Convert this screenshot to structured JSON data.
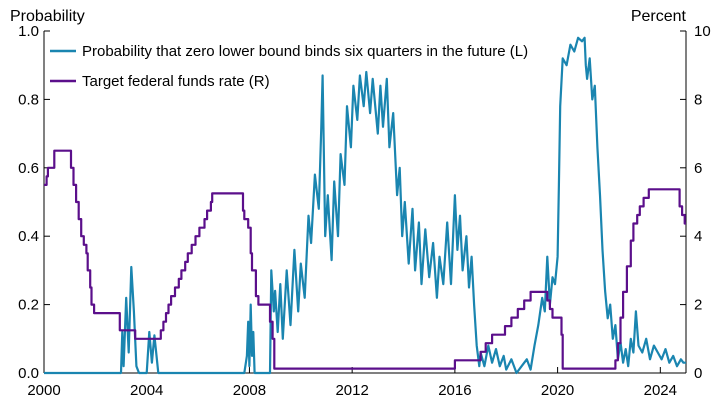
{
  "chart_data": {
    "type": "line",
    "left_axis_title": "Probability",
    "right_axis_title": "Percent",
    "xlim": [
      2000,
      2025
    ],
    "ylim_left": [
      0,
      1
    ],
    "ylim_right": [
      0,
      10
    ],
    "x_ticks": [
      2000,
      2004,
      2008,
      2012,
      2016,
      2020,
      2024
    ],
    "x_tick_labels": [
      "2000",
      "2004",
      "2008",
      "2012",
      "2016",
      "2020",
      "2024"
    ],
    "y_left_ticks": [
      0,
      0.2,
      0.4,
      0.6,
      0.8,
      1.0
    ],
    "y_left_tick_labels": [
      "0.0",
      "0.2",
      "0.4",
      "0.6",
      "0.8",
      "1.0"
    ],
    "y_right_ticks": [
      0,
      2,
      4,
      6,
      8,
      10
    ],
    "y_right_tick_labels": [
      "0",
      "2",
      "4",
      "6",
      "8",
      "10"
    ],
    "grid": false,
    "legend_position": "top-left",
    "series": [
      {
        "name": "Probability that zero lower bound binds six quarters in the future (L)",
        "axis": "left",
        "color": "#1a85b0",
        "points": [
          [
            2000.0,
            0.0
          ],
          [
            2003.0,
            0.0
          ],
          [
            2003.05,
            0.12
          ],
          [
            2003.1,
            0.02
          ],
          [
            2003.2,
            0.22
          ],
          [
            2003.3,
            0.06
          ],
          [
            2003.4,
            0.31
          ],
          [
            2003.5,
            0.18
          ],
          [
            2003.6,
            0.02
          ],
          [
            2003.7,
            0.0
          ],
          [
            2004.0,
            0.0
          ],
          [
            2004.1,
            0.12
          ],
          [
            2004.2,
            0.03
          ],
          [
            2004.3,
            0.11
          ],
          [
            2004.45,
            0.0
          ],
          [
            2007.8,
            0.0
          ],
          [
            2007.9,
            0.05
          ],
          [
            2007.95,
            0.15
          ],
          [
            2008.0,
            0.02
          ],
          [
            2008.05,
            0.2
          ],
          [
            2008.1,
            0.05
          ],
          [
            2008.15,
            0.12
          ],
          [
            2008.2,
            0.0
          ],
          [
            2008.8,
            0.0
          ],
          [
            2008.85,
            0.3
          ],
          [
            2008.95,
            0.18
          ],
          [
            2009.0,
            0.24
          ],
          [
            2009.1,
            0.12
          ],
          [
            2009.2,
            0.26
          ],
          [
            2009.3,
            0.1
          ],
          [
            2009.45,
            0.3
          ],
          [
            2009.6,
            0.14
          ],
          [
            2009.75,
            0.36
          ],
          [
            2009.9,
            0.18
          ],
          [
            2010.0,
            0.32
          ],
          [
            2010.15,
            0.22
          ],
          [
            2010.3,
            0.46
          ],
          [
            2010.4,
            0.38
          ],
          [
            2010.55,
            0.58
          ],
          [
            2010.7,
            0.48
          ],
          [
            2010.8,
            0.72
          ],
          [
            2010.85,
            0.87
          ],
          [
            2010.95,
            0.4
          ],
          [
            2011.05,
            0.52
          ],
          [
            2011.2,
            0.33
          ],
          [
            2011.3,
            0.56
          ],
          [
            2011.45,
            0.4
          ],
          [
            2011.55,
            0.64
          ],
          [
            2011.7,
            0.55
          ],
          [
            2011.8,
            0.78
          ],
          [
            2011.95,
            0.66
          ],
          [
            2012.05,
            0.84
          ],
          [
            2012.2,
            0.74
          ],
          [
            2012.3,
            0.87
          ],
          [
            2012.45,
            0.78
          ],
          [
            2012.55,
            0.88
          ],
          [
            2012.7,
            0.76
          ],
          [
            2012.8,
            0.86
          ],
          [
            2013.0,
            0.7
          ],
          [
            2013.1,
            0.84
          ],
          [
            2013.2,
            0.72
          ],
          [
            2013.35,
            0.86
          ],
          [
            2013.45,
            0.66
          ],
          [
            2013.6,
            0.76
          ],
          [
            2013.75,
            0.52
          ],
          [
            2013.85,
            0.6
          ],
          [
            2013.95,
            0.4
          ],
          [
            2014.05,
            0.5
          ],
          [
            2014.2,
            0.32
          ],
          [
            2014.35,
            0.48
          ],
          [
            2014.45,
            0.3
          ],
          [
            2014.6,
            0.44
          ],
          [
            2014.7,
            0.26
          ],
          [
            2014.85,
            0.42
          ],
          [
            2015.0,
            0.28
          ],
          [
            2015.15,
            0.38
          ],
          [
            2015.3,
            0.22
          ],
          [
            2015.4,
            0.34
          ],
          [
            2015.55,
            0.26
          ],
          [
            2015.7,
            0.44
          ],
          [
            2015.85,
            0.26
          ],
          [
            2016.0,
            0.52
          ],
          [
            2016.1,
            0.36
          ],
          [
            2016.2,
            0.46
          ],
          [
            2016.3,
            0.3
          ],
          [
            2016.45,
            0.4
          ],
          [
            2016.55,
            0.25
          ],
          [
            2016.65,
            0.34
          ],
          [
            2016.75,
            0.2
          ],
          [
            2016.85,
            0.08
          ],
          [
            2016.95,
            0.02
          ],
          [
            2017.0,
            0.06
          ],
          [
            2017.15,
            0.02
          ],
          [
            2017.3,
            0.08
          ],
          [
            2017.45,
            0.03
          ],
          [
            2017.6,
            0.07
          ],
          [
            2017.75,
            0.02
          ],
          [
            2017.9,
            0.05
          ],
          [
            2018.0,
            0.01
          ],
          [
            2018.2,
            0.04
          ],
          [
            2018.4,
            0.0
          ],
          [
            2018.6,
            0.02
          ],
          [
            2018.8,
            0.04
          ],
          [
            2018.95,
            0.01
          ],
          [
            2019.1,
            0.08
          ],
          [
            2019.25,
            0.14
          ],
          [
            2019.4,
            0.22
          ],
          [
            2019.5,
            0.18
          ],
          [
            2019.6,
            0.34
          ],
          [
            2019.7,
            0.2
          ],
          [
            2019.8,
            0.28
          ],
          [
            2019.9,
            0.26
          ],
          [
            2020.0,
            0.34
          ],
          [
            2020.05,
            0.55
          ],
          [
            2020.1,
            0.78
          ],
          [
            2020.2,
            0.92
          ],
          [
            2020.35,
            0.9
          ],
          [
            2020.5,
            0.96
          ],
          [
            2020.65,
            0.94
          ],
          [
            2020.8,
            0.98
          ],
          [
            2020.95,
            0.97
          ],
          [
            2021.05,
            0.98
          ],
          [
            2021.1,
            0.9
          ],
          [
            2021.15,
            0.86
          ],
          [
            2021.25,
            0.92
          ],
          [
            2021.35,
            0.8
          ],
          [
            2021.45,
            0.84
          ],
          [
            2021.55,
            0.66
          ],
          [
            2021.65,
            0.52
          ],
          [
            2021.75,
            0.36
          ],
          [
            2021.85,
            0.24
          ],
          [
            2021.95,
            0.16
          ],
          [
            2022.05,
            0.2
          ],
          [
            2022.15,
            0.1
          ],
          [
            2022.25,
            0.14
          ],
          [
            2022.35,
            0.04
          ],
          [
            2022.45,
            0.09
          ],
          [
            2022.55,
            0.03
          ],
          [
            2022.65,
            0.07
          ],
          [
            2022.75,
            0.02
          ],
          [
            2022.85,
            0.1
          ],
          [
            2022.95,
            0.06
          ],
          [
            2023.05,
            0.18
          ],
          [
            2023.15,
            0.08
          ],
          [
            2023.3,
            0.06
          ],
          [
            2023.45,
            0.1
          ],
          [
            2023.6,
            0.04
          ],
          [
            2023.75,
            0.08
          ],
          [
            2023.9,
            0.06
          ],
          [
            2024.05,
            0.04
          ],
          [
            2024.2,
            0.07
          ],
          [
            2024.35,
            0.03
          ],
          [
            2024.5,
            0.05
          ],
          [
            2024.65,
            0.02
          ],
          [
            2024.8,
            0.04
          ],
          [
            2024.9,
            0.03
          ],
          [
            2025.0,
            0.03
          ]
        ]
      },
      {
        "name": "Target federal funds rate (R)",
        "axis": "right",
        "color": "#5b0f8b",
        "points": [
          [
            2000.0,
            5.5
          ],
          [
            2000.1,
            5.75
          ],
          [
            2000.15,
            6.0
          ],
          [
            2000.4,
            6.5
          ],
          [
            2001.0,
            6.5
          ],
          [
            2001.05,
            6.0
          ],
          [
            2001.15,
            5.5
          ],
          [
            2001.25,
            5.0
          ],
          [
            2001.35,
            4.5
          ],
          [
            2001.45,
            4.0
          ],
          [
            2001.55,
            3.75
          ],
          [
            2001.65,
            3.5
          ],
          [
            2001.7,
            3.0
          ],
          [
            2001.8,
            2.5
          ],
          [
            2001.85,
            2.0
          ],
          [
            2001.95,
            1.75
          ],
          [
            2002.9,
            1.75
          ],
          [
            2002.95,
            1.25
          ],
          [
            2003.5,
            1.25
          ],
          [
            2003.55,
            1.0
          ],
          [
            2004.5,
            1.0
          ],
          [
            2004.55,
            1.25
          ],
          [
            2004.65,
            1.5
          ],
          [
            2004.75,
            1.75
          ],
          [
            2004.85,
            2.0
          ],
          [
            2004.95,
            2.25
          ],
          [
            2005.1,
            2.5
          ],
          [
            2005.25,
            2.75
          ],
          [
            2005.35,
            3.0
          ],
          [
            2005.5,
            3.25
          ],
          [
            2005.6,
            3.5
          ],
          [
            2005.75,
            3.75
          ],
          [
            2005.9,
            4.0
          ],
          [
            2006.05,
            4.25
          ],
          [
            2006.25,
            4.5
          ],
          [
            2006.35,
            4.75
          ],
          [
            2006.5,
            5.0
          ],
          [
            2006.55,
            5.25
          ],
          [
            2007.7,
            5.25
          ],
          [
            2007.75,
            4.75
          ],
          [
            2007.8,
            4.5
          ],
          [
            2007.95,
            4.25
          ],
          [
            2008.05,
            3.5
          ],
          [
            2008.1,
            3.0
          ],
          [
            2008.25,
            2.25
          ],
          [
            2008.35,
            2.0
          ],
          [
            2008.75,
            2.0
          ],
          [
            2008.8,
            1.5
          ],
          [
            2008.9,
            1.0
          ],
          [
            2008.97,
            0.13
          ],
          [
            2015.95,
            0.13
          ],
          [
            2016.0,
            0.37
          ],
          [
            2016.95,
            0.37
          ],
          [
            2017.0,
            0.62
          ],
          [
            2017.2,
            0.87
          ],
          [
            2017.45,
            1.12
          ],
          [
            2017.95,
            1.37
          ],
          [
            2018.2,
            1.62
          ],
          [
            2018.45,
            1.87
          ],
          [
            2018.7,
            2.12
          ],
          [
            2018.95,
            2.37
          ],
          [
            2019.55,
            2.37
          ],
          [
            2019.6,
            2.12
          ],
          [
            2019.7,
            1.87
          ],
          [
            2019.8,
            1.62
          ],
          [
            2020.15,
            1.12
          ],
          [
            2020.2,
            0.13
          ],
          [
            2022.2,
            0.13
          ],
          [
            2022.25,
            0.37
          ],
          [
            2022.35,
            0.87
          ],
          [
            2022.45,
            1.62
          ],
          [
            2022.55,
            2.37
          ],
          [
            2022.7,
            3.12
          ],
          [
            2022.85,
            3.87
          ],
          [
            2022.95,
            4.37
          ],
          [
            2023.1,
            4.62
          ],
          [
            2023.2,
            4.87
          ],
          [
            2023.35,
            5.12
          ],
          [
            2023.55,
            5.37
          ],
          [
            2024.7,
            5.37
          ],
          [
            2024.75,
            4.87
          ],
          [
            2024.85,
            4.62
          ],
          [
            2024.95,
            4.37
          ],
          [
            2025.0,
            4.37
          ]
        ]
      }
    ]
  }
}
